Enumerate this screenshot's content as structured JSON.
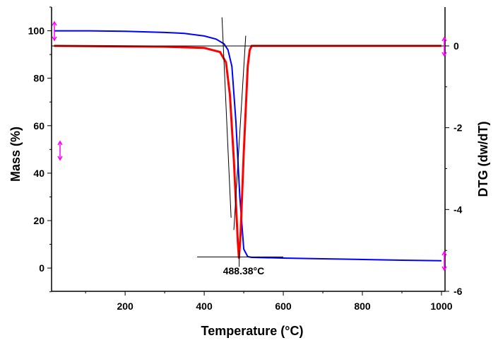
{
  "chart_data": {
    "type": "line",
    "title": "",
    "xlabel": "Temperature (°C)",
    "ylabel": "Mass (%)",
    "y2label": "DTG (dw/dT)",
    "xlim": [
      14,
      1009
    ],
    "ylim": [
      -9.8,
      110
    ],
    "y2lim": [
      -6,
      0.95
    ],
    "xticks": [
      200,
      400,
      600,
      800,
      1000
    ],
    "yticks": [
      0,
      20,
      40,
      60,
      80,
      100
    ],
    "y2ticks": [
      -6,
      -4,
      -2,
      0
    ],
    "grid": false,
    "legend": "none",
    "series": [
      {
        "axis": "left",
        "color": "#0000ff",
        "x": [
          20,
          100,
          200,
          300,
          350,
          400,
          430,
          450,
          460,
          470,
          480,
          490,
          500,
          510,
          520,
          600,
          700,
          800,
          900,
          1000
        ],
        "y": [
          100,
          100,
          99.8,
          99.3,
          98.9,
          97.8,
          96.5,
          94.5,
          92,
          85,
          62,
          30,
          8,
          4.8,
          4.5,
          4.2,
          3.9,
          3.6,
          3.3,
          3.1
        ]
      },
      {
        "axis": "right",
        "color": "#ff0000",
        "x": [
          20,
          300,
          400,
          440,
          455,
          465,
          475,
          485,
          488,
          492,
          500,
          510,
          515,
          520,
          700,
          1000
        ],
        "y": [
          0,
          -0.02,
          -0.05,
          -0.15,
          -0.4,
          -1.2,
          -2.8,
          -4.8,
          -5.2,
          -4.6,
          -2.6,
          -0.5,
          -0.1,
          0,
          0,
          0
        ]
      }
    ],
    "annotations": {
      "peak_label": "488.38°C",
      "tangent_lines_right_axis": [
        {
          "x": [
            14,
            1009
          ],
          "y": [
            0,
            0
          ]
        },
        {
          "x": [
            445,
            468
          ],
          "y": [
            0.7,
            -4.2
          ]
        },
        {
          "x": [
            505,
            475
          ],
          "y": [
            0.25,
            -4.5
          ]
        },
        {
          "x": [
            488.38,
            488.38
          ],
          "y": [
            -5.0,
            -5.4
          ]
        }
      ],
      "tangent_lines_left_axis": [
        {
          "x": [
            400,
            600
          ],
          "y": [
            4.7,
            4.7
          ]
        }
      ]
    },
    "marker_color": "#ff00ff"
  }
}
